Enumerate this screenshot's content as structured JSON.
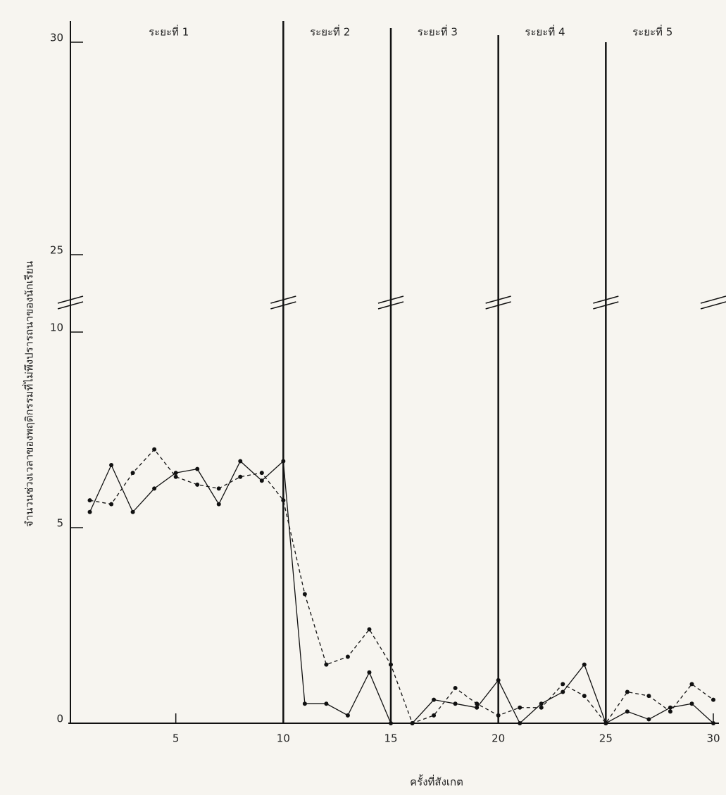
{
  "chart_data": {
    "type": "line",
    "x_label": "ครั้งที่สังเกต",
    "y_label": "จำนวนช่วงเวลาของพฤติกรรมที่ไม่พึงปรารถนาของนักเรียน",
    "x": [
      1,
      2,
      3,
      4,
      5,
      6,
      7,
      8,
      9,
      10,
      11,
      12,
      13,
      14,
      15,
      16,
      17,
      18,
      19,
      20,
      21,
      22,
      23,
      24,
      25,
      26,
      27,
      28,
      29,
      30
    ],
    "series": [
      {
        "color": "#111111",
        "dashed": false,
        "values": [
          5.4,
          6.6,
          5.4,
          6.0,
          6.4,
          6.5,
          5.6,
          6.7,
          6.2,
          6.7,
          0.5,
          0.5,
          0.2,
          1.3,
          0,
          0,
          0.6,
          0.5,
          0.4,
          1.1,
          0,
          0.5,
          0.8,
          1.5,
          0,
          0.3,
          0.1,
          0.4,
          0.5,
          0
        ]
      },
      {
        "color": "#111111",
        "dashed": true,
        "values": [
          5.7,
          5.6,
          6.4,
          7.0,
          6.3,
          6.1,
          6.0,
          6.3,
          6.4,
          5.7,
          3.3,
          1.5,
          1.7,
          2.4,
          1.5,
          0,
          0.2,
          0.9,
          0.5,
          0.2,
          0.4,
          0.4,
          1.0,
          0.7,
          0,
          0.8,
          0.7,
          0.3,
          1.0,
          0.6
        ]
      }
    ],
    "xlim": [
      0,
      30
    ],
    "xticks": [
      5,
      10,
      15,
      20,
      25,
      30
    ],
    "ylim": [
      0,
      30
    ],
    "yticks": [
      0,
      5,
      10,
      25,
      30
    ],
    "y_break": [
      10,
      25
    ],
    "phases": [
      {
        "label": "ระยะที่ 1",
        "start": 0,
        "end": 10
      },
      {
        "label": "ระยะที่ 2",
        "start": 10,
        "end": 15
      },
      {
        "label": "ระยะที่ 3",
        "start": 15,
        "end": 20
      },
      {
        "label": "ระยะที่ 4",
        "start": 20,
        "end": 25
      },
      {
        "label": "ระยะที่ 5",
        "start": 25,
        "end": 30
      }
    ]
  }
}
